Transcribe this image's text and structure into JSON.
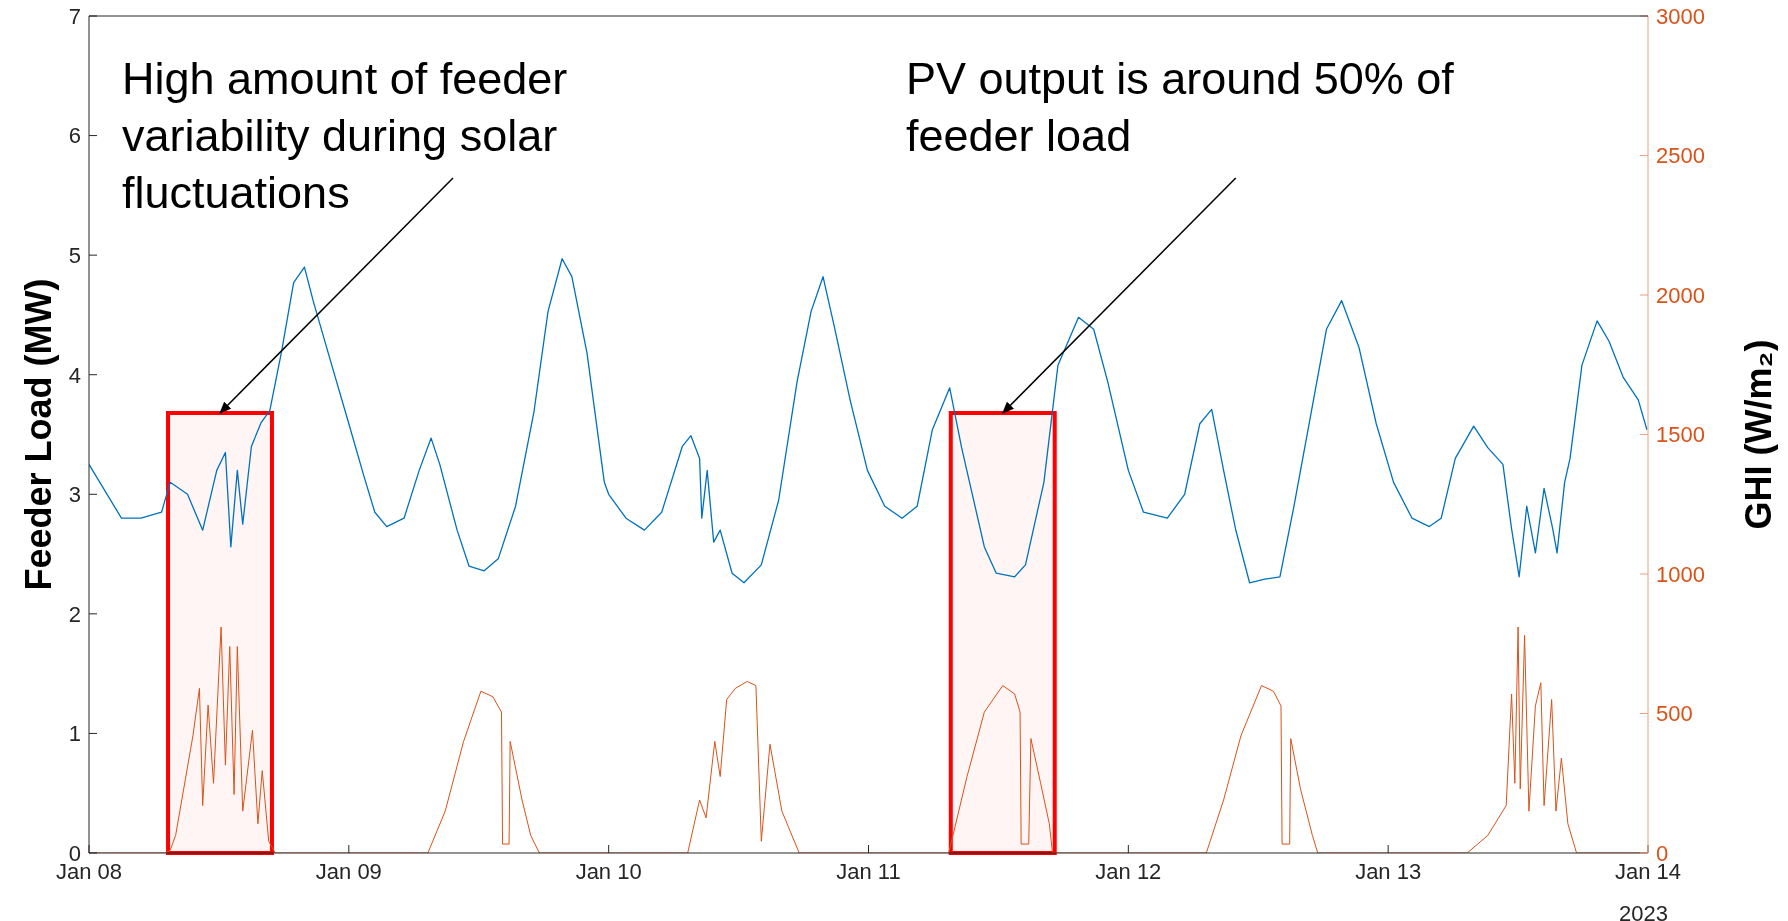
{
  "chart_data": {
    "type": "line",
    "xlabel": null,
    "ylabel": "Feeder Load (MW)",
    "y2label": "GHI (W/m₂)",
    "xlim": [
      "2023-01-08",
      "2023-01-14"
    ],
    "xticks": [
      {
        "value": "2023-01-08",
        "label": "Jan 08"
      },
      {
        "value": "2023-01-09",
        "label": "Jan 09"
      },
      {
        "value": "2023-01-10",
        "label": "Jan 10"
      },
      {
        "value": "2023-01-11",
        "label": "Jan 11"
      },
      {
        "value": "2023-01-12",
        "label": "Jan 12"
      },
      {
        "value": "2023-01-13",
        "label": "Jan 13"
      },
      {
        "value": "2023-01-14",
        "label": "Jan 14"
      }
    ],
    "ylim": [
      0,
      7
    ],
    "yticks": [
      0,
      1,
      2,
      3,
      4,
      5,
      6,
      7
    ],
    "y2lim": [
      0,
      3000
    ],
    "y2ticks": [
      0,
      500,
      1000,
      1500,
      2000,
      2500,
      3000
    ],
    "series": [
      {
        "color": "#0072bd",
        "x": [
          "2023-01-08T00:00",
          "2023-01-08T03:00",
          "2023-01-08T04:48",
          "2023-01-08T06:42",
          "2023-01-08T07:30",
          "2023-01-08T09:06",
          "2023-01-08T10:30",
          "2023-01-08T11:48",
          "2023-01-08T12:36",
          "2023-01-08T13:06",
          "2023-01-08T13:42",
          "2023-01-08T14:12",
          "2023-01-08T15:00",
          "2023-01-08T15:54",
          "2023-01-08T16:42",
          "2023-01-08T17:48",
          "2023-01-08T18:54",
          "2023-01-08T19:54",
          "2023-01-08T20:42",
          "2023-01-08T22:06",
          "2023-01-09T00:00",
          "2023-01-09T01:24",
          "2023-01-09T02:24",
          "2023-01-09T03:30",
          "2023-01-09T05:06",
          "2023-01-09T06:30",
          "2023-01-09T07:36",
          "2023-01-09T08:24",
          "2023-01-09T10:00",
          "2023-01-09T11:06",
          "2023-01-09T12:30",
          "2023-01-09T13:48",
          "2023-01-09T15:24",
          "2023-01-09T17:06",
          "2023-01-09T18:24",
          "2023-01-09T19:42",
          "2023-01-09T20:36",
          "2023-01-09T22:00",
          "2023-01-09T23:36",
          "2023-01-10T00:00",
          "2023-01-10T01:36",
          "2023-01-10T03:18",
          "2023-01-10T04:54",
          "2023-01-10T06:48",
          "2023-01-10T07:36",
          "2023-01-10T08:24",
          "2023-01-10T08:36",
          "2023-01-10T09:06",
          "2023-01-10T09:42",
          "2023-01-10T10:18",
          "2023-01-10T11:24",
          "2023-01-10T12:30",
          "2023-01-10T14:06",
          "2023-01-10T15:42",
          "2023-01-10T17:24",
          "2023-01-10T18:42",
          "2023-01-10T19:48",
          "2023-01-10T20:54",
          "2023-01-10T22:18",
          "2023-01-10T23:54",
          "2023-01-11T01:30",
          "2023-01-11T03:06",
          "2023-01-11T04:30",
          "2023-01-11T05:54",
          "2023-01-11T07:30",
          "2023-01-11T08:36",
          "2023-01-11T10:42",
          "2023-01-11T11:48",
          "2023-01-11T13:30",
          "2023-01-11T14:30",
          "2023-01-11T16:12",
          "2023-01-11T17:30",
          "2023-01-11T19:24",
          "2023-01-11T20:48",
          "2023-01-11T22:06",
          "2023-01-12T00:00",
          "2023-01-12T01:24",
          "2023-01-12T03:36",
          "2023-01-12T05:12",
          "2023-01-12T06:36",
          "2023-01-12T07:42",
          "2023-01-12T08:48",
          "2023-01-12T09:54",
          "2023-01-12T11:12",
          "2023-01-12T12:36",
          "2023-01-12T14:00",
          "2023-01-12T15:18",
          "2023-01-12T16:54",
          "2023-01-12T18:18",
          "2023-01-12T19:42",
          "2023-01-12T21:18",
          "2023-01-12T22:54",
          "2023-01-13T00:30",
          "2023-01-13T02:12",
          "2023-01-13T03:48",
          "2023-01-13T04:54",
          "2023-01-13T06:12",
          "2023-01-13T07:54",
          "2023-01-13T09:12",
          "2023-01-13T10:36",
          "2023-01-13T11:24",
          "2023-01-13T12:06",
          "2023-01-13T12:48",
          "2023-01-13T13:36",
          "2023-01-13T14:24",
          "2023-01-13T15:12",
          "2023-01-13T15:36",
          "2023-01-13T16:18",
          "2023-01-13T16:48",
          "2023-01-13T17:54",
          "2023-01-13T19:18",
          "2023-01-13T20:24",
          "2023-01-13T21:42",
          "2023-01-13T23:06",
          "2023-01-13T23:54"
        ],
        "values": [
          3.25,
          2.8,
          2.8,
          2.85,
          3.1,
          3.0,
          2.7,
          3.2,
          3.35,
          2.56,
          3.2,
          2.75,
          3.4,
          3.6,
          3.7,
          4.2,
          4.77,
          4.9,
          4.62,
          4.18,
          3.59,
          3.15,
          2.85,
          2.73,
          2.8,
          3.2,
          3.47,
          3.25,
          2.7,
          2.4,
          2.36,
          2.46,
          2.9,
          3.69,
          4.53,
          4.97,
          4.82,
          4.18,
          3.1,
          3.0,
          2.8,
          2.7,
          2.85,
          3.4,
          3.49,
          3.3,
          2.8,
          3.2,
          2.6,
          2.7,
          2.34,
          2.26,
          2.41,
          2.95,
          3.94,
          4.53,
          4.82,
          4.38,
          3.79,
          3.2,
          2.9,
          2.8,
          2.9,
          3.54,
          3.89,
          3.39,
          2.56,
          2.34,
          2.31,
          2.41,
          3.1,
          4.08,
          4.48,
          4.38,
          3.94,
          3.2,
          2.85,
          2.8,
          3.0,
          3.59,
          3.71,
          3.2,
          2.71,
          2.26,
          2.29,
          2.31,
          2.9,
          3.69,
          4.38,
          4.62,
          4.23,
          3.59,
          3.1,
          2.8,
          2.73,
          2.8,
          3.3,
          3.57,
          3.39,
          3.25,
          2.71,
          2.31,
          2.9,
          2.51,
          3.05,
          2.71,
          2.51,
          3.1,
          3.3,
          4.08,
          4.45,
          4.28,
          3.98,
          3.79,
          3.54
        ]
      },
      {
        "color": "#d95319",
        "axis": "y2",
        "x": [
          "2023-01-08T00:00",
          "2023-01-08T07:00",
          "2023-01-08T07:30",
          "2023-01-08T08:00",
          "2023-01-08T09:36",
          "2023-01-08T10:12",
          "2023-01-08T10:30",
          "2023-01-08T11:00",
          "2023-01-08T11:30",
          "2023-01-08T12:12",
          "2023-01-08T12:36",
          "2023-01-08T13:00",
          "2023-01-08T13:24",
          "2023-01-08T13:42",
          "2023-01-08T14:12",
          "2023-01-08T15:06",
          "2023-01-08T15:36",
          "2023-01-08T16:00",
          "2023-01-08T16:36",
          "2023-01-08T17:12",
          "2023-01-09T07:18",
          "2023-01-09T08:54",
          "2023-01-09T10:36",
          "2023-01-09T12:12",
          "2023-01-09T13:18",
          "2023-01-09T14:06",
          "2023-01-09T14:12",
          "2023-01-09T14:48",
          "2023-01-09T14:54",
          "2023-01-09T16:00",
          "2023-01-09T16:48",
          "2023-01-09T17:36",
          "2023-01-10T07:18",
          "2023-01-10T08:24",
          "2023-01-10T09:00",
          "2023-01-10T09:48",
          "2023-01-10T10:18",
          "2023-01-10T10:54",
          "2023-01-10T11:42",
          "2023-01-10T12:48",
          "2023-01-10T13:36",
          "2023-01-10T14:06",
          "2023-01-10T14:54",
          "2023-01-10T16:00",
          "2023-01-10T17:36",
          "2023-01-11T07:24",
          "2023-01-11T07:48",
          "2023-01-11T09:06",
          "2023-01-11T10:42",
          "2023-01-11T12:24",
          "2023-01-11T13:30",
          "2023-01-11T14:00",
          "2023-01-11T14:06",
          "2023-01-11T14:48",
          "2023-01-11T15:00",
          "2023-01-11T15:54",
          "2023-01-11T16:42",
          "2023-01-11T17:00",
          "2023-01-12T07:12",
          "2023-01-12T08:48",
          "2023-01-12T10:24",
          "2023-01-12T12:18",
          "2023-01-12T13:24",
          "2023-01-12T14:06",
          "2023-01-12T14:12",
          "2023-01-12T14:54",
          "2023-01-12T15:00",
          "2023-01-12T15:54",
          "2023-01-12T17:00",
          "2023-01-12T17:30",
          "2023-01-13T07:18",
          "2023-01-13T09:12",
          "2023-01-13T10:54",
          "2023-01-13T11:24",
          "2023-01-13T11:42",
          "2023-01-13T12:00",
          "2023-01-13T12:12",
          "2023-01-13T12:36",
          "2023-01-13T13:00",
          "2023-01-13T13:36",
          "2023-01-13T14:06",
          "2023-01-13T14:24",
          "2023-01-13T15:06",
          "2023-01-13T15:30",
          "2023-01-13T16:00",
          "2023-01-13T16:36",
          "2023-01-13T17:24",
          "2023-01-14T00:00"
        ],
        "values": [
          0,
          0,
          10,
          63,
          420,
          590,
          170,
          530,
          250,
          810,
          315,
          740,
          210,
          740,
          150,
          440,
          105,
          295,
          42,
          0,
          0,
          150,
          400,
          580,
          560,
          505,
          32,
          32,
          400,
          190,
          63,
          0,
          0,
          190,
          126,
          400,
          274,
          550,
          590,
          615,
          600,
          42,
          390,
          150,
          0,
          0,
          63,
          274,
          505,
          600,
          570,
          505,
          32,
          32,
          410,
          250,
          105,
          0,
          0,
          190,
          420,
          600,
          580,
          527,
          32,
          32,
          410,
          230,
          63,
          0,
          0,
          63,
          170,
          570,
          250,
          810,
          230,
          780,
          150,
          527,
          610,
          170,
          550,
          150,
          340,
          105,
          0,
          0
        ]
      }
    ],
    "bands": [
      {
        "axis": "x",
        "from": "2023-01-08T07:18",
        "to": "2023-01-08T16:54",
        "color": "#ff0000"
      },
      {
        "axis": "x",
        "from": "2023-01-11T07:36",
        "to": "2023-01-11T17:12",
        "color": "#ff0000"
      }
    ],
    "annotations": [
      {
        "text": "High amount of feeder variability during solar fluctuations",
        "x": "2023-01-08T12:06",
        "y": 3.68
      },
      {
        "text": "PV output is around 50% of feeder load",
        "x": "2023-01-11T12:24",
        "y": 3.68
      },
      "2023"
    ]
  }
}
